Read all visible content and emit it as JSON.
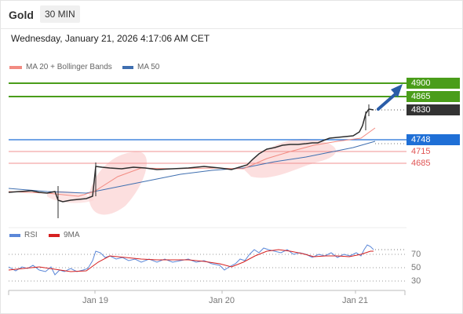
{
  "header": {
    "title": "Gold",
    "timeframe": "30 MIN"
  },
  "datetime": "Wednesday, January 21, 2026 4:17:06 AM CET",
  "legend": [
    {
      "label": "MA 20 + Bollinger Bands",
      "color": "#f28b82"
    },
    {
      "label": "MA 50",
      "color": "#3f6fb0"
    }
  ],
  "levels": {
    "resistance": [
      "4900",
      "4865"
    ],
    "current": "4830",
    "pivot": "4748",
    "support": [
      "4715",
      "4685"
    ]
  },
  "colors": {
    "resistance": "#4a9d1a",
    "pivot": "#1f6fd6",
    "support": "#e05555",
    "current": "#333333"
  },
  "rsi_legend": [
    {
      "label": "RSI",
      "color": "#5b87d8"
    },
    {
      "label": "9MA",
      "color": "#d62020"
    }
  ],
  "rsi_levels": [
    "70",
    "50",
    "30"
  ],
  "x_labels": [
    "Jan 19",
    "Jan 20",
    "Jan 21"
  ]
}
